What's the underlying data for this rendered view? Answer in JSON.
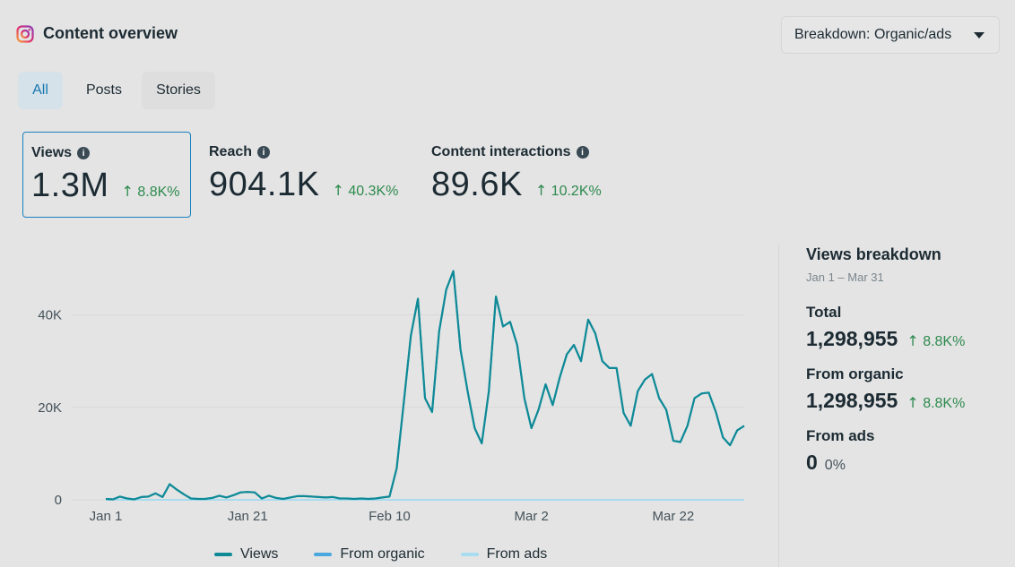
{
  "header": {
    "title": "Content overview",
    "breakdown_label": "Breakdown: Organic/ads"
  },
  "tabs": [
    {
      "label": "All",
      "active": true
    },
    {
      "label": "Posts",
      "active": false
    },
    {
      "label": "Stories",
      "active": false
    }
  ],
  "metrics": [
    {
      "label": "Views",
      "value": "1.3M",
      "change": "8.8K%",
      "selected": true
    },
    {
      "label": "Reach",
      "value": "904.1K",
      "change": "40.3K%",
      "selected": false
    },
    {
      "label": "Content interactions",
      "value": "89.6K",
      "change": "10.2K%",
      "selected": false
    }
  ],
  "panel": {
    "title": "Views breakdown",
    "range": "Jan 1 – Mar 31",
    "total_label": "Total",
    "total_value": "1,298,955",
    "total_change": "8.8K%",
    "organic_label": "From organic",
    "organic_value": "1,298,955",
    "organic_change": "8.8K%",
    "ads_label": "From ads",
    "ads_value": "0",
    "ads_pct": "0%"
  },
  "colors": {
    "views": "#0e8a96",
    "organic": "#4aa8de",
    "ads": "#a8dcf0",
    "positive": "#2d8a4e",
    "accent": "#1a80c0"
  },
  "chart_data": {
    "type": "line",
    "x_tick_labels": [
      "Jan 1",
      "Jan 21",
      "Feb 10",
      "Mar 2",
      "Mar 22"
    ],
    "x_tick_index": [
      0,
      20,
      40,
      60,
      80
    ],
    "y_tick_labels": [
      "0",
      "20K",
      "40K"
    ],
    "y_tick_values": [
      0,
      20000,
      40000
    ],
    "ylim": [
      0,
      50000
    ],
    "grid": true,
    "legend_position": "bottom",
    "series": [
      {
        "name": "Views",
        "values": [
          200,
          100,
          700,
          300,
          100,
          600,
          700,
          1400,
          600,
          3400,
          2200,
          1200,
          300,
          200,
          200,
          400,
          900,
          500,
          1000,
          1600,
          1700,
          1600,
          300,
          900,
          400,
          200,
          500,
          800,
          800,
          700,
          600,
          500,
          600,
          300,
          300,
          200,
          300,
          200,
          300,
          500,
          700,
          6800,
          21000,
          35500,
          43500,
          22000,
          19000,
          36500,
          45500,
          49500,
          32500,
          23500,
          15500,
          12200,
          23500,
          44000,
          37500,
          38500,
          33500,
          22000,
          15500,
          19500,
          25000,
          20500,
          26500,
          31500,
          33500,
          30000,
          39000,
          36000,
          30000,
          28500,
          28500,
          18800,
          16000,
          23500,
          26000,
          27200,
          22000,
          19500,
          12800,
          12500,
          16000,
          22000,
          23000,
          23200,
          19000,
          13500,
          11800,
          15000,
          16000
        ],
        "color": "#0e8a96"
      },
      {
        "name": "From organic",
        "values": "same as Views",
        "color": "#4aa8de"
      },
      {
        "name": "From ads",
        "values": [
          0
        ],
        "color": "#a8dcf0"
      }
    ]
  }
}
